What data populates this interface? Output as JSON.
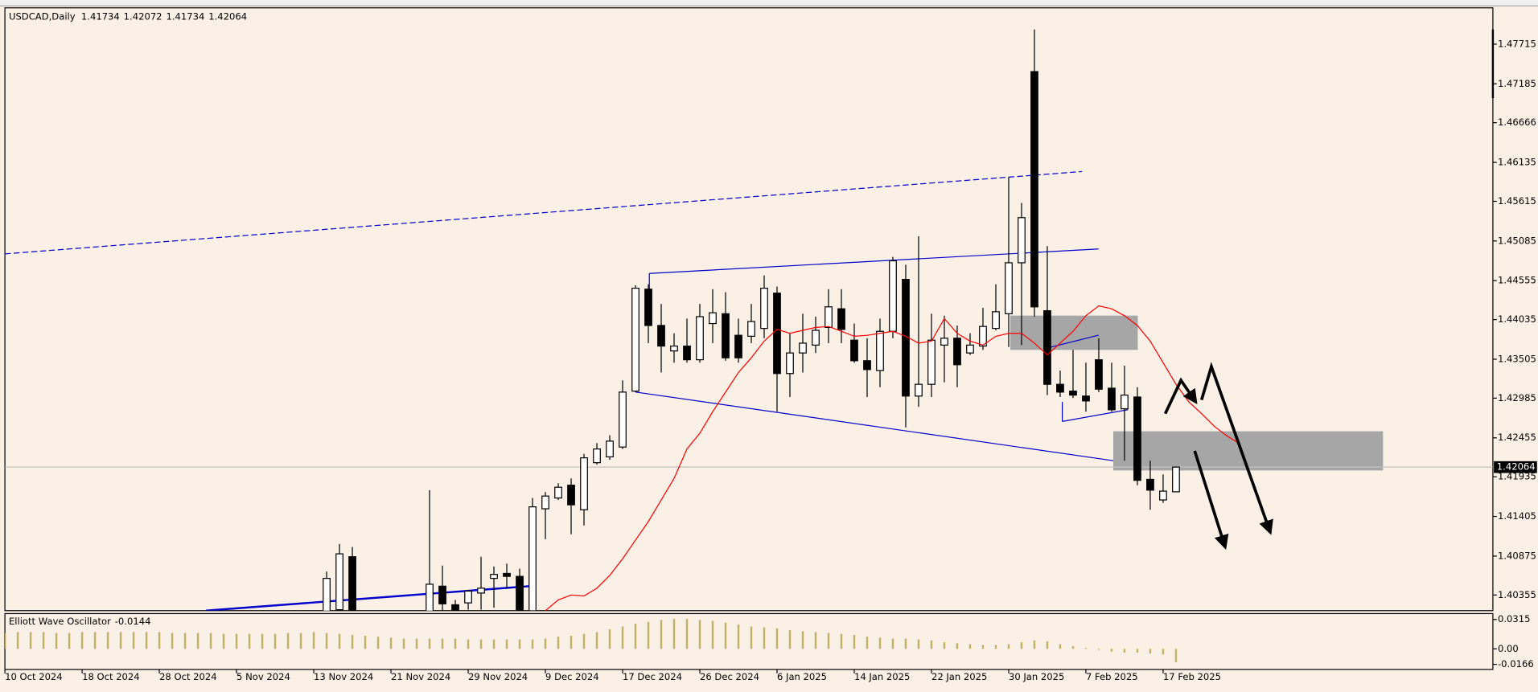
{
  "chart_data": [
    {
      "type": "candlestick",
      "title": "USDCAD,Daily",
      "categories": [
        "10 Oct 2024",
        null,
        null,
        null,
        null,
        null,
        "18 Oct 2024",
        null,
        null,
        null,
        null,
        null,
        "28 Oct 2024",
        null,
        null,
        null,
        null,
        null,
        "5 Nov 2024",
        null,
        null,
        null,
        null,
        null,
        "13 Nov 2024",
        null,
        null,
        null,
        null,
        null,
        "21 Nov 2024",
        null,
        null,
        null,
        null,
        null,
        "29 Nov 2024",
        null,
        null,
        null,
        null,
        null,
        "9 Dec 2024",
        null,
        null,
        null,
        null,
        null,
        "17 Dec 2024",
        null,
        null,
        null,
        null,
        null,
        "26 Dec 2024",
        null,
        null,
        null,
        null,
        null,
        "6 Jan 2025",
        null,
        null,
        null,
        null,
        null,
        "14 Jan 2025",
        null,
        null,
        null,
        null,
        null,
        "22 Jan 2025",
        null,
        null,
        null,
        null,
        null,
        "30 Jan 2025",
        null,
        null,
        null,
        null,
        null,
        "7 Feb 2025",
        null,
        null,
        null,
        null,
        null,
        "17 Feb 2025",
        null
      ],
      "open": [
        null,
        null,
        null,
        null,
        null,
        null,
        null,
        null,
        null,
        null,
        null,
        null,
        null,
        null,
        null,
        null,
        null,
        null,
        null,
        null,
        null,
        null,
        null,
        null,
        null,
        1.40054,
        1.40158,
        1.40866,
        null,
        null,
        null,
        null,
        null,
        1.40119,
        1.40473,
        1.40224,
        1.4025,
        1.40381,
        1.40577,
        1.40643,
        1.40604,
        1.40145,
        1.41507,
        1.41651,
        1.41822,
        1.41494,
        1.42123,
        1.42201,
        1.42332,
        1.43079,
        1.44441,
        1.43956,
        1.43616,
        1.43681,
        1.43498,
        1.43982,
        1.44113,
        1.43825,
        1.43812,
        1.43917,
        1.44388,
        1.43314,
        1.43589,
        1.43694,
        1.4393,
        1.44179,
        1.4376,
        1.43485,
        1.43354,
        1.43878,
        1.44572,
        1.43013,
        1.4317,
        1.43694,
        1.43786,
        1.43589,
        1.43681,
        1.43917,
        1.44113,
        1.44794,
        1.47348,
        1.44153,
        1.4317,
        1.43079,
        1.43013,
        1.43498,
        1.43118,
        1.42843,
        1.43,
        1.419,
        1.41625,
        1.41734
      ],
      "high": [
        null,
        null,
        null,
        null,
        null,
        null,
        null,
        null,
        null,
        null,
        null,
        null,
        null,
        null,
        null,
        null,
        null,
        null,
        null,
        null,
        null,
        null,
        null,
        null,
        null,
        1.40669,
        1.41036,
        1.40996,
        null,
        null,
        null,
        null,
        null,
        1.41756,
        1.40748,
        1.40289,
        1.4042,
        1.40866,
        1.40735,
        1.40774,
        1.40708,
        1.41651,
        1.4173,
        1.41848,
        1.41913,
        1.42241,
        1.42385,
        1.42489,
        1.43223,
        1.44493,
        1.44506,
        1.44244,
        1.43851,
        1.44048,
        1.44244,
        1.44441,
        1.44401,
        1.44048,
        1.44244,
        1.44624,
        1.44476,
        1.43851,
        1.44113,
        1.44074,
        1.44441,
        1.44441,
        1.43982,
        1.43786,
        1.44048,
        1.44873,
        1.44768,
        1.45148,
        1.44113,
        1.44087,
        1.43956,
        1.43851,
        1.44192,
        1.44506,
        1.45934,
        1.45593,
        1.47911,
        1.45017,
        1.43354,
        1.43629,
        1.43459,
        1.43786,
        1.43459,
        1.43419,
        1.43131,
        1.42149,
        1.41966,
        1.42072
      ],
      "low": [
        null,
        null,
        null,
        null,
        null,
        null,
        null,
        null,
        null,
        null,
        null,
        null,
        null,
        null,
        null,
        null,
        null,
        null,
        null,
        null,
        null,
        null,
        null,
        null,
        null,
        1.39922,
        1.40054,
        1.39922,
        null,
        null,
        null,
        null,
        null,
        1.40054,
        1.40132,
        1.4008,
        1.40158,
        1.40158,
        1.40185,
        1.40446,
        1.39988,
        1.40106,
        1.41101,
        1.41625,
        1.41167,
        1.41285,
        1.42097,
        1.42162,
        1.42306,
        1.43066,
        1.4372,
        1.43328,
        1.43459,
        1.43459,
        1.43459,
        1.4372,
        1.43485,
        1.43459,
        1.4372,
        1.43786,
        1.42804,
        1.43,
        1.43328,
        1.43589,
        1.4372,
        1.4372,
        1.43459,
        1.43,
        1.43131,
        1.43786,
        1.42594,
        1.42869,
        1.43,
        1.43197,
        1.43131,
        1.43563,
        1.43629,
        1.43891,
        1.43668,
        1.43694,
        1.44074,
        1.43026,
        1.43,
        1.42987,
        1.42804,
        1.43066,
        1.42804,
        1.42149,
        1.41822,
        1.41494,
        1.41586,
        1.41734
      ],
      "close": [
        null,
        null,
        null,
        null,
        null,
        null,
        null,
        null,
        null,
        null,
        null,
        null,
        null,
        null,
        null,
        null,
        null,
        null,
        null,
        null,
        null,
        null,
        null,
        null,
        null,
        1.40577,
        1.40905,
        1.40054,
        null,
        null,
        null,
        null,
        null,
        1.40499,
        1.40237,
        1.40119,
        1.40407,
        1.40446,
        1.4063,
        1.40604,
        1.40054,
        1.41533,
        1.41677,
        1.41795,
        1.4156,
        1.42188,
        1.42306,
        1.42411,
        1.43066,
        1.44454,
        1.43956,
        1.43681,
        1.43681,
        1.43498,
        1.44074,
        1.44126,
        1.43524,
        1.43524,
        1.44009,
        1.44454,
        1.43314,
        1.43589,
        1.4372,
        1.43891,
        1.44205,
        1.43904,
        1.43485,
        1.43367,
        1.43878,
        1.4482,
        1.43013,
        1.4317,
        1.4376,
        1.43786,
        1.43432,
        1.43694,
        1.43943,
        1.4414,
        1.44794,
        1.45397,
        1.44205,
        1.4317,
        1.43066,
        1.43026,
        1.42948,
        1.43105,
        1.4283,
        1.43026,
        1.41887,
        1.41756,
        1.41743,
        1.42064
      ],
      "ylim": [
        1.40146,
        1.482
      ],
      "yticks": [
        1.47715,
        1.47185,
        1.46666,
        1.46135,
        1.45615,
        1.45085,
        1.44555,
        1.44035,
        1.43505,
        1.42985,
        1.42455,
        1.41935,
        1.41405,
        1.40875,
        1.40355
      ],
      "up_color": "#ffffff",
      "down_color": "#000000",
      "ma": {
        "color": "#ff0000",
        "x": [
          42,
          43,
          44,
          45,
          46,
          47,
          48,
          49,
          50,
          51,
          52,
          53,
          54,
          55,
          56,
          57,
          58,
          59,
          60,
          61,
          62,
          63,
          64,
          65,
          66,
          67,
          68,
          69,
          70,
          71,
          72,
          73,
          74,
          75,
          76,
          77,
          78,
          79,
          80,
          81,
          82,
          83,
          84,
          85,
          86,
          87,
          88,
          89,
          90,
          91,
          92,
          93,
          94,
          95,
          96
        ],
        "values": [
          1.40145,
          1.40289,
          1.40355,
          1.40342,
          1.40446,
          1.40617,
          1.40839,
          1.41088,
          1.41337,
          1.41625,
          1.41913,
          1.42306,
          1.42516,
          1.42804,
          1.43066,
          1.43328,
          1.43524,
          1.43747,
          1.43904,
          1.43851,
          1.43891,
          1.4393,
          1.43943,
          1.43878,
          1.43812,
          1.43825,
          1.43851,
          1.43878,
          1.43812,
          1.4372,
          1.43747,
          1.44048,
          1.43851,
          1.43747,
          1.43694,
          1.43812,
          1.43851,
          1.43851,
          1.4372,
          1.43563,
          1.4372,
          1.43878,
          1.44087,
          1.44218,
          1.44179,
          1.44087,
          1.43956,
          1.43747,
          1.43459,
          1.4317,
          1.42935,
          1.42777,
          1.42606,
          1.42476,
          1.42371
        ]
      }
    },
    {
      "type": "bar",
      "title": "Elliott Wave Oscillator",
      "color": "#bfb06a",
      "values": [
        0.017,
        0.018,
        0.018,
        0.018,
        0.017,
        0.017,
        0.018,
        0.018,
        0.018,
        0.018,
        0.018,
        0.018,
        0.018,
        0.017,
        0.017,
        0.017,
        0.017,
        0.016,
        0.016,
        0.016,
        0.016,
        0.016,
        0.017,
        0.017,
        0.018,
        0.017,
        0.016,
        0.015,
        0.014,
        0.013,
        0.012,
        0.011,
        0.011,
        0.011,
        0.011,
        0.011,
        0.01,
        0.01,
        0.01,
        0.01,
        0.01,
        0.01,
        0.011,
        0.013,
        0.014,
        0.016,
        0.018,
        0.021,
        0.024,
        0.027,
        0.029,
        0.031,
        0.032,
        0.032,
        0.031,
        0.03,
        0.028,
        0.026,
        0.024,
        0.023,
        0.022,
        0.02,
        0.019,
        0.018,
        0.017,
        0.016,
        0.015,
        0.013,
        0.012,
        0.011,
        0.011,
        0.01,
        0.009,
        0.007,
        0.006,
        0.005,
        0.004,
        0.004,
        0.005,
        0.007,
        0.009,
        0.008,
        0.005,
        0.003,
        0.001,
        -0.001,
        -0.003,
        -0.004,
        -0.004,
        -0.005,
        -0.006,
        -0.0144
      ],
      "ylim": [
        -0.0221,
        0.0378
      ],
      "yticks": [
        0.0315,
        {
          "value": 0,
          "label": "0.00"
        },
        -0.0166
      ]
    }
  ]
}
